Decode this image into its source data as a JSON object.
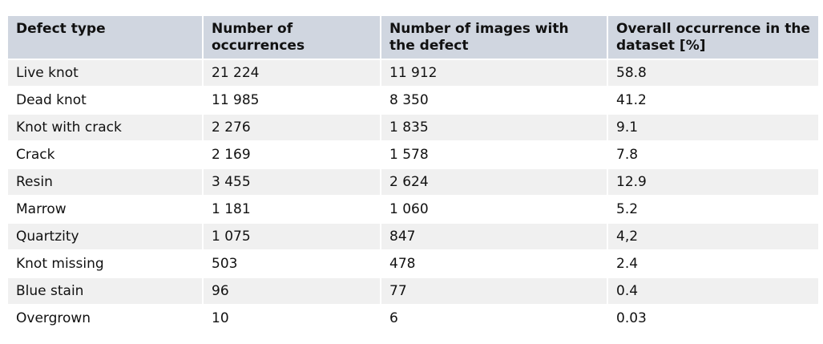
{
  "table": {
    "headers": [
      "Defect type",
      "Number of occurrences",
      "Number of images with the defect",
      "Overall occurrence in the dataset [%]"
    ],
    "rows": [
      [
        "Live knot",
        "21 224",
        "11 912",
        "58.8"
      ],
      [
        "Dead knot",
        "11 985",
        "8 350",
        "41.2"
      ],
      [
        "Knot with crack",
        "2 276",
        "1 835",
        "9.1"
      ],
      [
        "Crack",
        "2 169",
        "1 578",
        "7.8"
      ],
      [
        "Resin",
        "3 455",
        "2 624",
        "12.9"
      ],
      [
        "Marrow",
        "1 181",
        "1 060",
        "5.2"
      ],
      [
        "Quartzity",
        "1 075",
        "847",
        "4,2"
      ],
      [
        "Knot missing",
        "503",
        "478",
        "2.4"
      ],
      [
        "Blue stain",
        "96",
        "77",
        "0.4"
      ],
      [
        "Overgrown",
        "10",
        "6",
        "0.03"
      ]
    ]
  }
}
